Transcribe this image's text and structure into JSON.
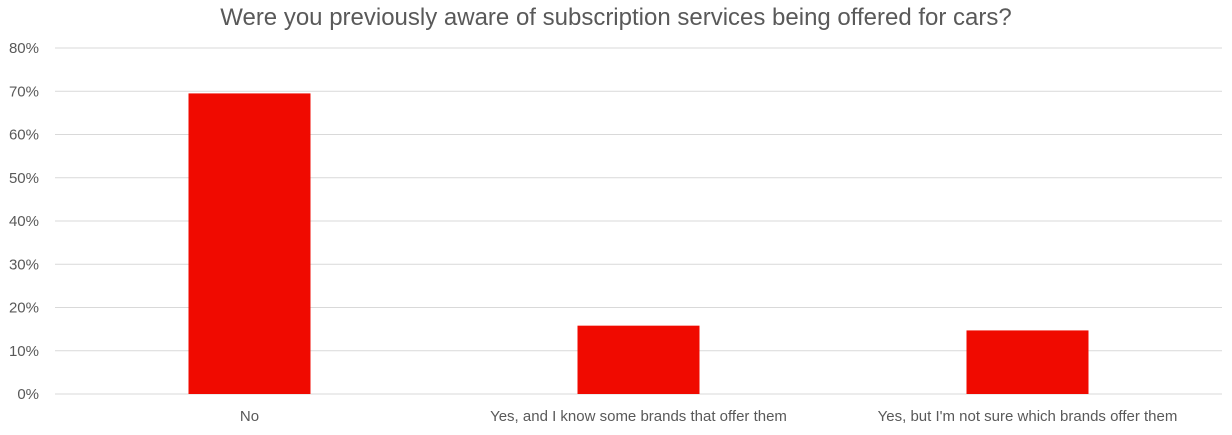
{
  "chart_data": {
    "type": "bar",
    "title": "Were you previously aware of subscription services being offered for cars?",
    "categories": [
      "No",
      "Yes, and I know some brands that offer them",
      "Yes, but I'm not sure which brands offer them"
    ],
    "values": [
      69.5,
      15.8,
      14.7
    ],
    "ylim": [
      0,
      80
    ],
    "yticks": [
      0,
      10,
      20,
      30,
      40,
      50,
      60,
      70,
      80
    ],
    "ytick_labels": [
      "0%",
      "10%",
      "20%",
      "30%",
      "40%",
      "50%",
      "60%",
      "70%",
      "80%"
    ],
    "bar_color": "#f00a00",
    "grid": true,
    "legend": "none"
  }
}
